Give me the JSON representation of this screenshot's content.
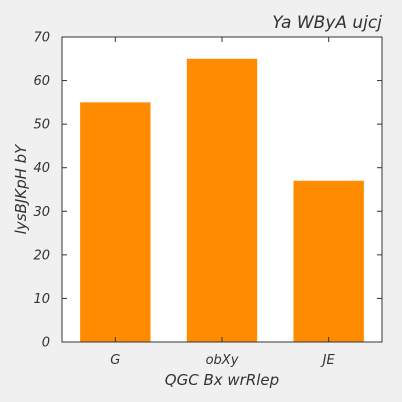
{
  "chart_data": {
    "type": "bar",
    "title": "Ya WByA ujcj",
    "xlabel": "QGC Bx wrRlep",
    "ylabel": "lysBJKpH bY",
    "categories": [
      "G",
      "obXy",
      "JE"
    ],
    "values": [
      55,
      65,
      37
    ],
    "ylim": [
      0,
      70
    ],
    "yticks": [
      0,
      10,
      20,
      30,
      40,
      50,
      60,
      70
    ],
    "grid": false,
    "bar_color": "#ff8c00",
    "background_color": "#f0f0f0",
    "plot_background_color": "#ffffff"
  }
}
